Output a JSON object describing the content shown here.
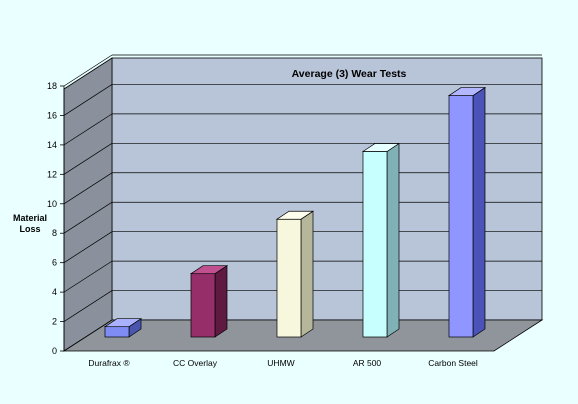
{
  "chart_data": {
    "type": "bar",
    "title": "Average (3) Wear Tests",
    "ylabel_lines": [
      "Material",
      "Loss"
    ],
    "xlabel": "",
    "categories": [
      "Durafrax ®",
      "CC Overlay",
      "UHMW",
      "AR 500",
      "Carbon Steel"
    ],
    "values": [
      0.7,
      4.3,
      8.0,
      12.6,
      16.4
    ],
    "ylim": [
      0,
      18
    ],
    "yticks": [
      0,
      2,
      4,
      6,
      8,
      10,
      12,
      14,
      16,
      18
    ],
    "grid": true,
    "legend": "none",
    "bar_colors": [
      {
        "front": "#7f8cf4",
        "side": "#4a55b0",
        "top": "#aab2ff"
      },
      {
        "front": "#962e6a",
        "side": "#5f1a42",
        "top": "#c0508f"
      },
      {
        "front": "#f7f7de",
        "side": "#b6b69b",
        "top": "#ffffee"
      },
      {
        "front": "#c7ffff",
        "side": "#7fb1b6",
        "top": "#e6ffff"
      },
      {
        "front": "#8f96ff",
        "side": "#4b52b8",
        "top": "#b2b7ff"
      }
    ],
    "colors": {
      "background": "#eaffff",
      "back_wall": "#b8c4d8",
      "side_wall": "#8a919c",
      "floor": "#8f959a",
      "gridline": "#000000"
    }
  }
}
